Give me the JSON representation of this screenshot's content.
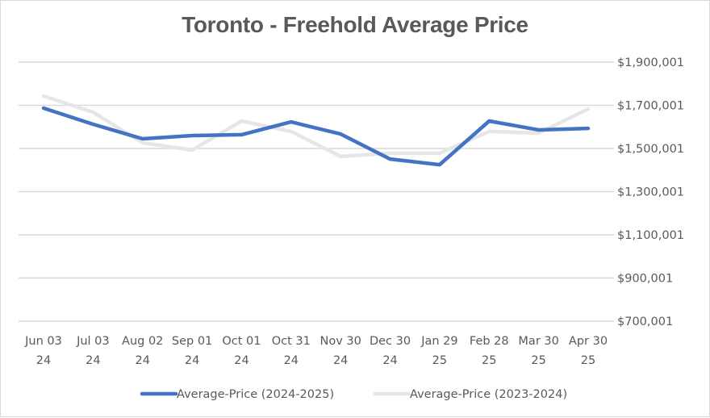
{
  "chart_data": {
    "type": "line",
    "title": "Toronto - Freehold Average Price",
    "xlabel": "",
    "ylabel": "",
    "categories": [
      [
        "Jun 03",
        "24"
      ],
      [
        "Jul 03",
        "24"
      ],
      [
        "Aug 02",
        "24"
      ],
      [
        "Sep 01",
        "24"
      ],
      [
        "Oct 01",
        "24"
      ],
      [
        "Oct 31",
        "24"
      ],
      [
        "Nov 30",
        "24"
      ],
      [
        "Dec 30",
        "24"
      ],
      [
        "Jan 29",
        "25"
      ],
      [
        "Feb 28",
        "25"
      ],
      [
        "Mar 30",
        "25"
      ],
      [
        "Apr 30",
        "25"
      ]
    ],
    "ylim": [
      700001,
      1900001
    ],
    "yticks": [
      {
        "value": 1900001,
        "label": "$1,900,001"
      },
      {
        "value": 1700001,
        "label": "$1,700,001"
      },
      {
        "value": 1500001,
        "label": "$1,500,001"
      },
      {
        "value": 1300001,
        "label": "$1,300,001"
      },
      {
        "value": 1100001,
        "label": "$1,100,001"
      },
      {
        "value": 900001,
        "label": "$900,001"
      },
      {
        "value": 700001,
        "label": "$700,001"
      }
    ],
    "y_axis_position": "right",
    "grid": true,
    "legend_position": "bottom",
    "series": [
      {
        "name": "Average-Price (2024-2025)",
        "color": "#4472c4",
        "values": [
          1687000,
          1612000,
          1545000,
          1560000,
          1564000,
          1623000,
          1567000,
          1451000,
          1425000,
          1627000,
          1586000,
          1593000
        ]
      },
      {
        "name": "Average-Price (2023-2024)",
        "color": "#e7e6e6",
        "values": [
          1743000,
          1668000,
          1526000,
          1493000,
          1627000,
          1579000,
          1463000,
          1478000,
          1478000,
          1579000,
          1571000,
          1683000
        ]
      }
    ]
  }
}
